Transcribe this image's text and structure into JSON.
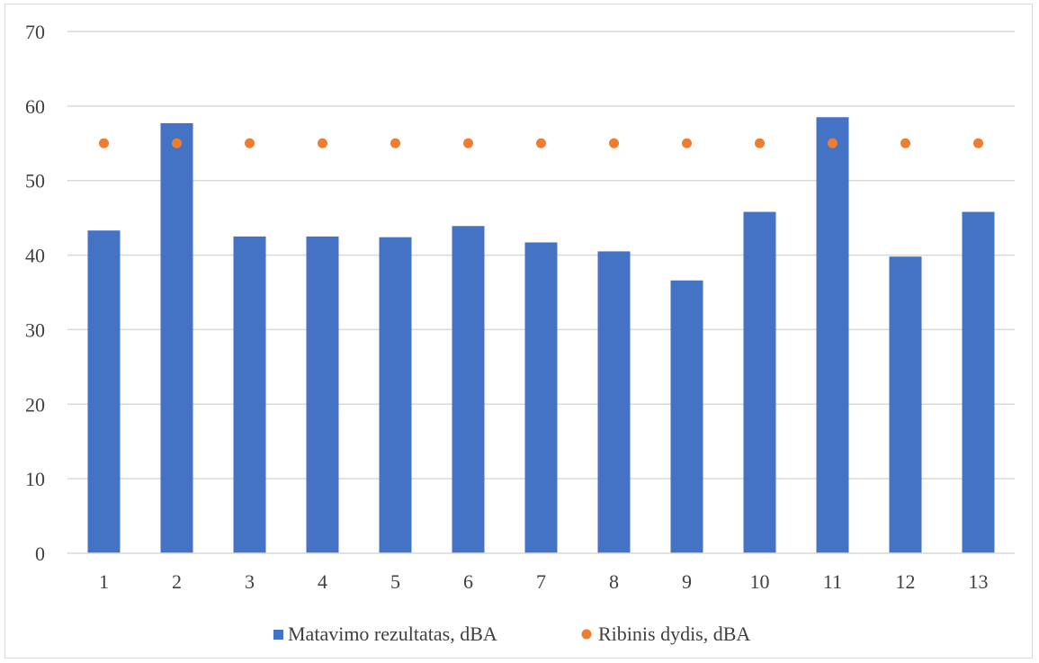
{
  "chart_data": {
    "type": "bar",
    "categories": [
      "1",
      "2",
      "3",
      "4",
      "5",
      "6",
      "7",
      "8",
      "9",
      "10",
      "11",
      "12",
      "13"
    ],
    "series": [
      {
        "name": "Matavimo rezultatas, dBA",
        "kind": "bar",
        "color": "#4472c4",
        "values": [
          43.3,
          57.7,
          42.5,
          42.5,
          42.4,
          43.9,
          41.7,
          40.5,
          36.6,
          45.8,
          58.5,
          39.8,
          45.8
        ]
      },
      {
        "name": "Ribinis dydis, dBA",
        "kind": "point",
        "color": "#ed7d31",
        "values": [
          55,
          55,
          55,
          55,
          55,
          55,
          55,
          55,
          55,
          55,
          55,
          55,
          55
        ]
      }
    ],
    "ylim": [
      0,
      70
    ],
    "yticks": [
      "0",
      "10",
      "20",
      "30",
      "40",
      "50",
      "60",
      "70"
    ],
    "grid": true,
    "legend_position": "bottom"
  }
}
